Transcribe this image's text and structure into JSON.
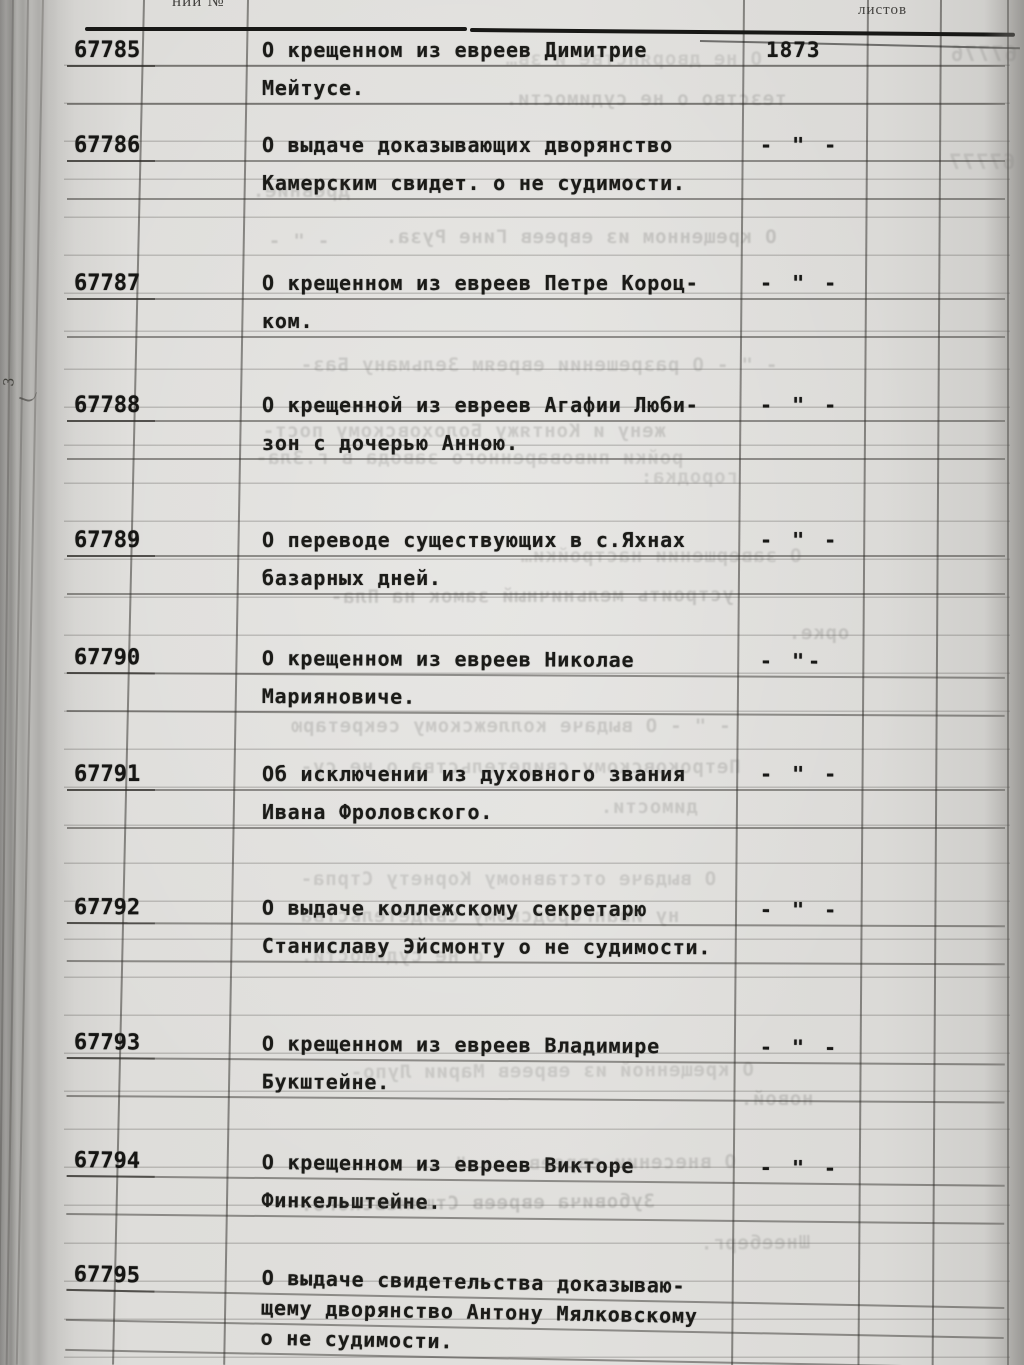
{
  "register": {
    "header": {
      "middle_column_label": "ний №",
      "sheets_column_label": "листов"
    },
    "margin_note": "3",
    "rows": [
      {
        "number": "67785",
        "lines": [
          "О крещенном из евреев Димитрие",
          "Мейтусе."
        ],
        "year": "1873"
      },
      {
        "number": "67786",
        "lines": [
          "О выдаче доказывающих дворянство",
          "Камерским свидет. о не судимости."
        ],
        "year": "- \" -"
      },
      {
        "number": "67787",
        "lines": [
          "О крещенном из евреев Петре Короц-",
          "ком."
        ],
        "year": "- \" -"
      },
      {
        "number": "67788",
        "lines": [
          "О крещенной из евреев Агафии Люби-",
          "зон с дочерью Анною."
        ],
        "year": "- \" -"
      },
      {
        "number": "67789",
        "lines": [
          "О переводе существующих в с.Яхнах",
          "базарных дней."
        ],
        "year": "- \" -"
      },
      {
        "number": "67790",
        "lines": [
          "О крещенном из  евреев Николае",
          "Марияновиче."
        ],
        "year": "- \"-"
      },
      {
        "number": "67791",
        "lines": [
          "Об исключении из духовного звания",
          "Ивана Фроловского."
        ],
        "year": "- \" -"
      },
      {
        "number": "67792",
        "lines": [
          "О выдаче коллежскому секретарю",
          "Станиславу Эйсмонту о не судимости."
        ],
        "year": "- \" -"
      },
      {
        "number": "67793",
        "lines": [
          "О крещенном из евреев Владимире",
          "Букштейне."
        ],
        "year": "- \" -"
      },
      {
        "number": "67794",
        "lines": [
          "О крещенном из евреев Викторе",
          "Финкельштейне."
        ],
        "year": "- \" -"
      },
      {
        "number": "67795",
        "lines": [
          "О выдаче свидетельства доказываю-",
          "щему дворянство Антону Мялковскому",
          "о не судимости."
        ],
        "year": ""
      }
    ],
    "bleedthrough": [
      "О не дворянстве и зв…",
      "тезство о не судимости.",
      "Древние.",
      "- \" -",
      "О крещенном из евреев Гине Руза.",
      "- \" -   О разрешении евреям Зельману Баз-",
      "жену и Контяжу Болоховскому пост-",
      "ройки пивоваренного завода в г.Зла-",
      "городка:",
      "О завершении настройки…",
      "устроить мельничный замок на Пла-",
      "орке.",
      "- \" -   О выдаче коллежскому секретарю",
      "Петроковскому свидетельства о не су-",
      "димости.",
      "О выдаче отставному Корнету Стрпа-",
      "ну Ивангородскому свидетельства",
      "о не судимости.",
      "О крещенной из евреев Марии Лупо-",
      "новой.",
      "О внесении евреев …   - \" -",
      "Зубовича евреев Стшимевского.",
      "Шнееберг.",
      "67776",
      "67777"
    ]
  }
}
